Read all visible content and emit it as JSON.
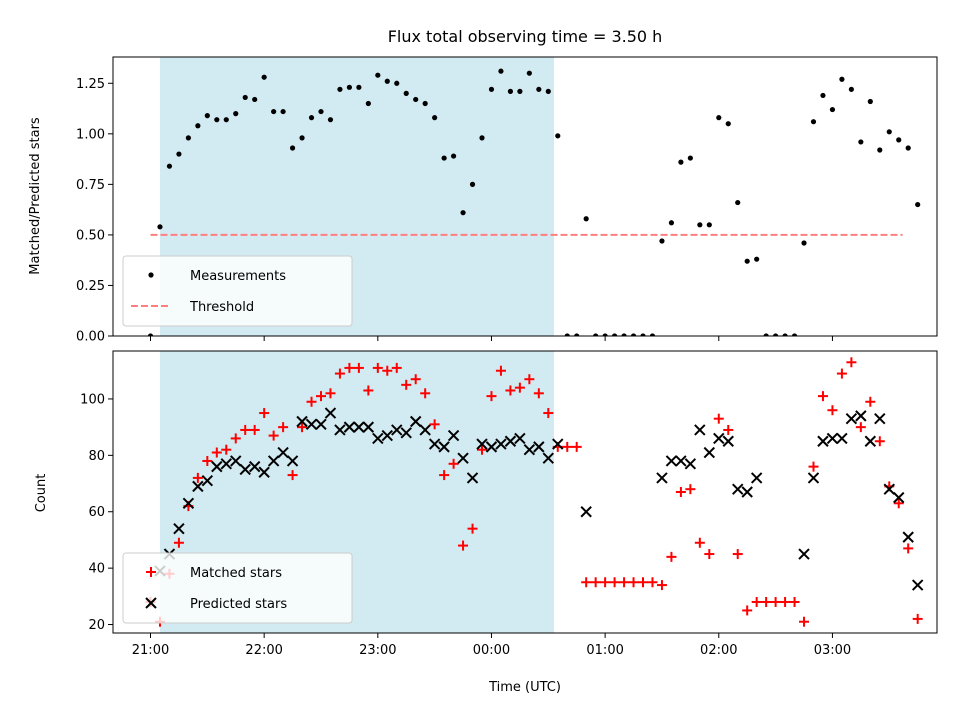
{
  "chart_data": [
    {
      "type": "scatter",
      "title": "Flux total observing time = 3.50 h",
      "xlabel": "",
      "ylabel": "Matched/Predicted stars",
      "ylim": [
        0,
        1.38
      ],
      "xlim_hours": [
        20.67,
        27.92
      ],
      "yticks": [
        0.0,
        0.25,
        0.5,
        0.75,
        1.0,
        1.25
      ],
      "ytick_labels": [
        "0.00",
        "0.25",
        "0.50",
        "0.75",
        "1.00",
        "1.25"
      ],
      "shaded_span": {
        "start": "21:05",
        "end": "00:33",
        "color": "#add8e6"
      },
      "legend": {
        "location": "lower-left",
        "entries": [
          "Measurements",
          "Threshold"
        ]
      },
      "threshold": {
        "name": "Threshold",
        "value": 0.5,
        "x_start": "21:00",
        "x_end": "03:37",
        "color": "#ff7f7f",
        "style": "dashed"
      },
      "series": [
        {
          "name": "Measurements",
          "color": "#000000",
          "marker": "dot",
          "points": [
            [
              "21:00",
              0.0
            ],
            [
              "21:05",
              0.54
            ],
            [
              "21:10",
              0.84
            ],
            [
              "21:15",
              0.9
            ],
            [
              "21:20",
              0.98
            ],
            [
              "21:25",
              1.04
            ],
            [
              "21:30",
              1.09
            ],
            [
              "21:35",
              1.07
            ],
            [
              "21:40",
              1.07
            ],
            [
              "21:45",
              1.1
            ],
            [
              "21:50",
              1.18
            ],
            [
              "21:55",
              1.17
            ],
            [
              "22:00",
              1.28
            ],
            [
              "22:05",
              1.11
            ],
            [
              "22:10",
              1.11
            ],
            [
              "22:15",
              0.93
            ],
            [
              "22:20",
              0.98
            ],
            [
              "22:25",
              1.08
            ],
            [
              "22:30",
              1.11
            ],
            [
              "22:35",
              1.07
            ],
            [
              "22:40",
              1.22
            ],
            [
              "22:45",
              1.23
            ],
            [
              "22:50",
              1.23
            ],
            [
              "22:55",
              1.15
            ],
            [
              "23:00",
              1.29
            ],
            [
              "23:05",
              1.26
            ],
            [
              "23:10",
              1.25
            ],
            [
              "23:15",
              1.2
            ],
            [
              "23:20",
              1.17
            ],
            [
              "23:25",
              1.15
            ],
            [
              "23:30",
              1.08
            ],
            [
              "23:35",
              0.88
            ],
            [
              "23:40",
              0.89
            ],
            [
              "23:45",
              0.61
            ],
            [
              "23:50",
              0.75
            ],
            [
              "23:55",
              0.98
            ],
            [
              "00:00",
              1.22
            ],
            [
              "00:05",
              1.31
            ],
            [
              "00:10",
              1.21
            ],
            [
              "00:15",
              1.21
            ],
            [
              "00:20",
              1.3
            ],
            [
              "00:25",
              1.22
            ],
            [
              "00:30",
              1.21
            ],
            [
              "00:35",
              0.99
            ],
            [
              "00:40",
              0.0
            ],
            [
              "00:45",
              0.0
            ],
            [
              "00:50",
              0.58
            ],
            [
              "00:55",
              0.0
            ],
            [
              "01:00",
              0.0
            ],
            [
              "01:05",
              0.0
            ],
            [
              "01:10",
              0.0
            ],
            [
              "01:15",
              0.0
            ],
            [
              "01:20",
              0.0
            ],
            [
              "01:25",
              0.0
            ],
            [
              "01:30",
              0.47
            ],
            [
              "01:35",
              0.56
            ],
            [
              "01:40",
              0.86
            ],
            [
              "01:45",
              0.88
            ],
            [
              "01:50",
              0.55
            ],
            [
              "01:55",
              0.55
            ],
            [
              "02:00",
              1.08
            ],
            [
              "02:05",
              1.05
            ],
            [
              "02:10",
              0.66
            ],
            [
              "02:15",
              0.37
            ],
            [
              "02:20",
              0.38
            ],
            [
              "02:25",
              0.0
            ],
            [
              "02:30",
              0.0
            ],
            [
              "02:35",
              0.0
            ],
            [
              "02:40",
              0.0
            ],
            [
              "02:45",
              0.46
            ],
            [
              "02:50",
              1.06
            ],
            [
              "02:55",
              1.19
            ],
            [
              "03:00",
              1.12
            ],
            [
              "03:05",
              1.27
            ],
            [
              "03:10",
              1.22
            ],
            [
              "03:15",
              0.96
            ],
            [
              "03:20",
              1.16
            ],
            [
              "03:25",
              0.92
            ],
            [
              "03:30",
              1.01
            ],
            [
              "03:35",
              0.97
            ],
            [
              "03:40",
              0.93
            ],
            [
              "03:45",
              0.65
            ]
          ]
        }
      ]
    },
    {
      "type": "scatter",
      "title": "",
      "xlabel": "Time (UTC)",
      "ylabel": "Count",
      "ylim": [
        17,
        117
      ],
      "xlim_hours": [
        20.67,
        27.92
      ],
      "yticks": [
        20,
        40,
        60,
        80,
        100
      ],
      "ytick_labels": [
        "20",
        "40",
        "60",
        "80",
        "100"
      ],
      "xticks": [
        "21:00",
        "22:00",
        "23:00",
        "00:00",
        "01:00",
        "02:00",
        "03:00"
      ],
      "shaded_span": {
        "start": "21:05",
        "end": "00:33",
        "color": "#add8e6"
      },
      "legend": {
        "location": "lower-left",
        "entries": [
          "Matched stars",
          "Predicted stars"
        ]
      },
      "series": [
        {
          "name": "Matched stars",
          "color": "#ff0000",
          "marker": "plus",
          "points": [
            [
              "21:00",
              28
            ],
            [
              "21:05",
              21
            ],
            [
              "21:10",
              38
            ],
            [
              "21:15",
              49
            ],
            [
              "21:20",
              62
            ],
            [
              "21:25",
              72
            ],
            [
              "21:30",
              78
            ],
            [
              "21:35",
              81
            ],
            [
              "21:40",
              82
            ],
            [
              "21:45",
              86
            ],
            [
              "21:50",
              89
            ],
            [
              "21:55",
              89
            ],
            [
              "22:00",
              95
            ],
            [
              "22:05",
              87
            ],
            [
              "22:10",
              90
            ],
            [
              "22:15",
              73
            ],
            [
              "22:20",
              90
            ],
            [
              "22:25",
              99
            ],
            [
              "22:30",
              101
            ],
            [
              "22:35",
              102
            ],
            [
              "22:40",
              109
            ],
            [
              "22:45",
              111
            ],
            [
              "22:50",
              111
            ],
            [
              "22:55",
              103
            ],
            [
              "23:00",
              111
            ],
            [
              "23:05",
              110
            ],
            [
              "23:10",
              111
            ],
            [
              "23:15",
              105
            ],
            [
              "23:20",
              107
            ],
            [
              "23:25",
              102
            ],
            [
              "23:30",
              91
            ],
            [
              "23:35",
              73
            ],
            [
              "23:40",
              77
            ],
            [
              "23:45",
              48
            ],
            [
              "23:50",
              54
            ],
            [
              "23:55",
              82
            ],
            [
              "00:00",
              101
            ],
            [
              "00:05",
              110
            ],
            [
              "00:10",
              103
            ],
            [
              "00:15",
              104
            ],
            [
              "00:20",
              107
            ],
            [
              "00:25",
              102
            ],
            [
              "00:30",
              95
            ],
            [
              "00:35",
              83
            ],
            [
              "00:40",
              83
            ],
            [
              "00:45",
              83
            ],
            [
              "00:50",
              35
            ],
            [
              "00:55",
              35
            ],
            [
              "01:00",
              35
            ],
            [
              "01:05",
              35
            ],
            [
              "01:10",
              35
            ],
            [
              "01:15",
              35
            ],
            [
              "01:20",
              35
            ],
            [
              "01:25",
              35
            ],
            [
              "01:30",
              34
            ],
            [
              "01:35",
              44
            ],
            [
              "01:40",
              67
            ],
            [
              "01:45",
              68
            ],
            [
              "01:50",
              49
            ],
            [
              "01:55",
              45
            ],
            [
              "02:00",
              93
            ],
            [
              "02:05",
              89
            ],
            [
              "02:10",
              45
            ],
            [
              "02:15",
              25
            ],
            [
              "02:20",
              28
            ],
            [
              "02:25",
              28
            ],
            [
              "02:30",
              28
            ],
            [
              "02:35",
              28
            ],
            [
              "02:40",
              28
            ],
            [
              "02:45",
              21
            ],
            [
              "02:50",
              76
            ],
            [
              "02:55",
              101
            ],
            [
              "03:00",
              96
            ],
            [
              "03:05",
              109
            ],
            [
              "03:10",
              113
            ],
            [
              "03:15",
              90
            ],
            [
              "03:20",
              99
            ],
            [
              "03:25",
              85
            ],
            [
              "03:30",
              69
            ],
            [
              "03:35",
              63
            ],
            [
              "03:40",
              47
            ],
            [
              "03:45",
              22
            ]
          ]
        },
        {
          "name": "Predicted stars",
          "color": "#000000",
          "marker": "x",
          "points": [
            [
              "21:05",
              39
            ],
            [
              "21:10",
              45
            ],
            [
              "21:15",
              54
            ],
            [
              "21:20",
              63
            ],
            [
              "21:25",
              69
            ],
            [
              "21:30",
              71
            ],
            [
              "21:35",
              76
            ],
            [
              "21:40",
              77
            ],
            [
              "21:45",
              78
            ],
            [
              "21:50",
              75
            ],
            [
              "21:55",
              76
            ],
            [
              "22:00",
              74
            ],
            [
              "22:05",
              78
            ],
            [
              "22:10",
              81
            ],
            [
              "22:15",
              78
            ],
            [
              "22:20",
              92
            ],
            [
              "22:25",
              91
            ],
            [
              "22:30",
              91
            ],
            [
              "22:35",
              95
            ],
            [
              "22:40",
              89
            ],
            [
              "22:45",
              90
            ],
            [
              "22:50",
              90
            ],
            [
              "22:55",
              90
            ],
            [
              "23:00",
              86
            ],
            [
              "23:05",
              87
            ],
            [
              "23:10",
              89
            ],
            [
              "23:15",
              88
            ],
            [
              "23:20",
              92
            ],
            [
              "23:25",
              89
            ],
            [
              "23:30",
              84
            ],
            [
              "23:35",
              83
            ],
            [
              "23:40",
              87
            ],
            [
              "23:45",
              79
            ],
            [
              "23:50",
              72
            ],
            [
              "23:55",
              84
            ],
            [
              "00:00",
              83
            ],
            [
              "00:05",
              84
            ],
            [
              "00:10",
              85
            ],
            [
              "00:15",
              86
            ],
            [
              "00:20",
              82
            ],
            [
              "00:25",
              83
            ],
            [
              "00:30",
              79
            ],
            [
              "00:35",
              84
            ],
            [
              "00:50",
              60
            ],
            [
              "01:30",
              72
            ],
            [
              "01:35",
              78
            ],
            [
              "01:40",
              78
            ],
            [
              "01:45",
              77
            ],
            [
              "01:50",
              89
            ],
            [
              "01:55",
              81
            ],
            [
              "02:00",
              86
            ],
            [
              "02:05",
              85
            ],
            [
              "02:10",
              68
            ],
            [
              "02:15",
              67
            ],
            [
              "02:20",
              72
            ],
            [
              "02:45",
              45
            ],
            [
              "02:50",
              72
            ],
            [
              "02:55",
              85
            ],
            [
              "03:00",
              86
            ],
            [
              "03:05",
              86
            ],
            [
              "03:10",
              93
            ],
            [
              "03:15",
              94
            ],
            [
              "03:20",
              85
            ],
            [
              "03:25",
              93
            ],
            [
              "03:30",
              68
            ],
            [
              "03:35",
              65
            ],
            [
              "03:40",
              51
            ],
            [
              "03:45",
              34
            ]
          ]
        }
      ]
    }
  ]
}
